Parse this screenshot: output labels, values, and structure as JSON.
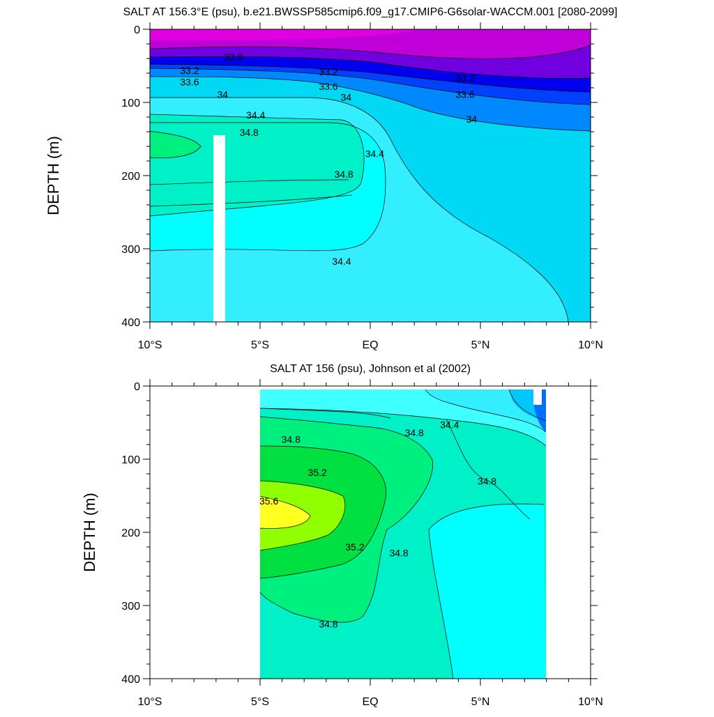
{
  "chart_data": [
    {
      "type": "contour",
      "title": "SALT AT 156.3°E (psu), b.e21.BWSSP585cmip6.f09_g17.CMIP6-G6solar-WACCM.001 [2080-2099]",
      "xlabel": "",
      "ylabel": "DEPTH (m)",
      "xlim": [
        -10,
        10
      ],
      "ylim": [
        400,
        0
      ],
      "x_ticks": [
        {
          "value": -10,
          "label": "10°S"
        },
        {
          "value": -5,
          "label": "5°S"
        },
        {
          "value": 0,
          "label": "EQ"
        },
        {
          "value": 5,
          "label": "5°N"
        },
        {
          "value": 10,
          "label": "10°N"
        }
      ],
      "y_ticks": [
        0,
        100,
        200,
        300,
        400
      ],
      "y_tick_labels": [
        "0",
        "100",
        "200",
        "300",
        "400"
      ],
      "levels": [
        32.8,
        33.2,
        33.6,
        34.0,
        34.4,
        34.8
      ],
      "contour_labels": [
        {
          "text": "32.8",
          "lat": -6.2,
          "depth": 38
        },
        {
          "text": "33.2",
          "lat": -8.2,
          "depth": 56
        },
        {
          "text": "33.6",
          "lat": -8.2,
          "depth": 72
        },
        {
          "text": "34",
          "lat": -6.7,
          "depth": 89
        },
        {
          "text": "34.4",
          "lat": -5.2,
          "depth": 117
        },
        {
          "text": "34.8",
          "lat": -5.5,
          "depth": 141
        },
        {
          "text": "34.8",
          "lat": -1.2,
          "depth": 198
        },
        {
          "text": "34.4",
          "lat": 0.2,
          "depth": 170
        },
        {
          "text": "34.4",
          "lat": -1.3,
          "depth": 317
        },
        {
          "text": "33.2",
          "lat": -1.9,
          "depth": 58
        },
        {
          "text": "33.6",
          "lat": -1.9,
          "depth": 78
        },
        {
          "text": "34",
          "lat": -1.1,
          "depth": 93
        },
        {
          "text": "33.2",
          "lat": 4.3,
          "depth": 66
        },
        {
          "text": "33.6",
          "lat": 4.3,
          "depth": 89
        },
        {
          "text": "34",
          "lat": 4.6,
          "depth": 123
        }
      ],
      "missing_data_column": {
        "lat_range": [
          -7.1,
          -6.6
        ],
        "depth_range": [
          145,
          400
        ]
      }
    },
    {
      "type": "contour",
      "title": "SALT AT 156 (psu), Johnson et al (2002)",
      "xlabel": "",
      "ylabel": "DEPTH (m)",
      "xlim": [
        -10,
        10
      ],
      "ylim": [
        400,
        0
      ],
      "data_lat_range": [
        -5,
        8
      ],
      "x_ticks": [
        {
          "value": -10,
          "label": "10°S"
        },
        {
          "value": -5,
          "label": "5°S"
        },
        {
          "value": 0,
          "label": "EQ"
        },
        {
          "value": 5,
          "label": "5°N"
        },
        {
          "value": 10,
          "label": "10°N"
        }
      ],
      "y_ticks": [
        0,
        100,
        200,
        300,
        400
      ],
      "y_tick_labels": [
        "0",
        "100",
        "200",
        "300",
        "400"
      ],
      "levels": [
        34.4,
        34.6,
        34.8,
        35.0,
        35.2,
        35.4,
        35.6
      ],
      "contour_labels": [
        {
          "text": "34.8",
          "lat": -3.6,
          "depth": 73
        },
        {
          "text": "34.8",
          "lat": 2.0,
          "depth": 64
        },
        {
          "text": "34.4",
          "lat": 3.6,
          "depth": 53
        },
        {
          "text": "35.2",
          "lat": -2.4,
          "depth": 118
        },
        {
          "text": "35.6",
          "lat": -4.6,
          "depth": 157
        },
        {
          "text": "34.8",
          "lat": 5.3,
          "depth": 130
        },
        {
          "text": "35.2",
          "lat": -0.7,
          "depth": 220
        },
        {
          "text": "34.8",
          "lat": 1.3,
          "depth": 228
        },
        {
          "text": "34.8",
          "lat": -1.9,
          "depth": 325
        }
      ]
    }
  ]
}
